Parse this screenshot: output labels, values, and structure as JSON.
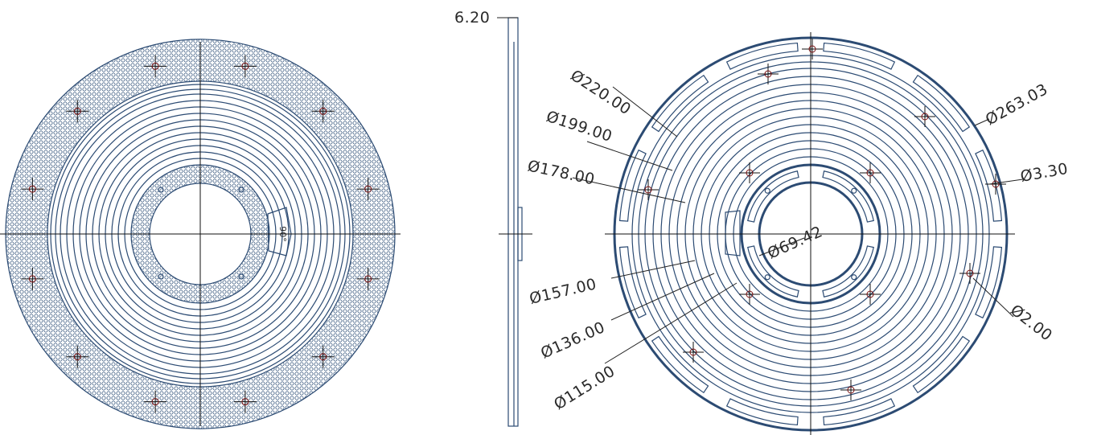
{
  "drawing": {
    "side_view": {
      "thickness_label": "6.20"
    },
    "dimensions": {
      "d220": "Ø220.00",
      "d199": "Ø199.00",
      "d178": "Ø178.00",
      "d157": "Ø157.00",
      "d136": "Ø136.00",
      "d115": "Ø115.00",
      "d69": "Ø69.42",
      "d263": "Ø263.03",
      "d3": "Ø3.30",
      "d2": "Ø2.00"
    },
    "left_view": {
      "window_label": "90°"
    }
  },
  "colors": {
    "part_stroke": "#2c4b73",
    "hatch": "#3a5a80",
    "center_line": "#111111",
    "marker": "#7a1010"
  }
}
